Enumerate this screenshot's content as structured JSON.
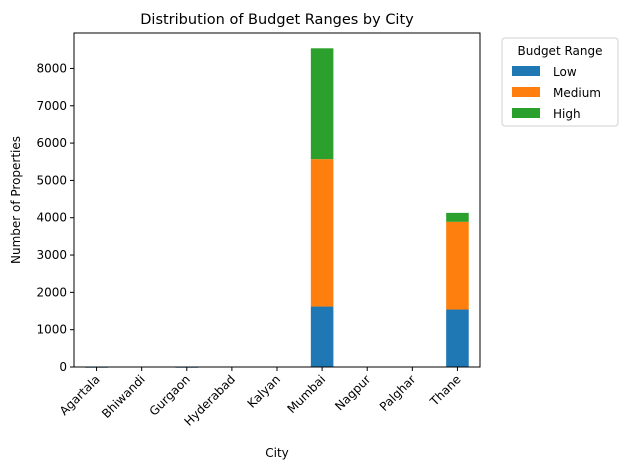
{
  "chart_data": {
    "type": "bar",
    "stacked": true,
    "title": "Distribution of Budget Ranges by City",
    "xlabel": "City",
    "ylabel": "Number of Properties",
    "categories": [
      "Agartala",
      "Bhiwandi",
      "Gurgaon",
      "Hyderabad",
      "Kalyan",
      "Mumbai",
      "Nagpur",
      "Palghar",
      "Thane"
    ],
    "series": [
      {
        "name": "Low",
        "color": "#1f77b4",
        "values": [
          2,
          12,
          2,
          8,
          8,
          1620,
          8,
          10,
          1540
        ]
      },
      {
        "name": "Medium",
        "color": "#ff7f0e",
        "values": [
          0,
          0,
          0,
          0,
          0,
          3950,
          0,
          0,
          2350
        ]
      },
      {
        "name": "High",
        "color": "#2ca02c",
        "values": [
          0,
          0,
          0,
          0,
          0,
          2970,
          0,
          0,
          240
        ]
      }
    ],
    "ylim": [
      0,
      8950
    ],
    "yticks": [
      0,
      1000,
      2000,
      3000,
      4000,
      5000,
      6000,
      7000,
      8000
    ],
    "grid": false,
    "legend": {
      "title": "Budget Range",
      "position": "outside top-right"
    }
  }
}
